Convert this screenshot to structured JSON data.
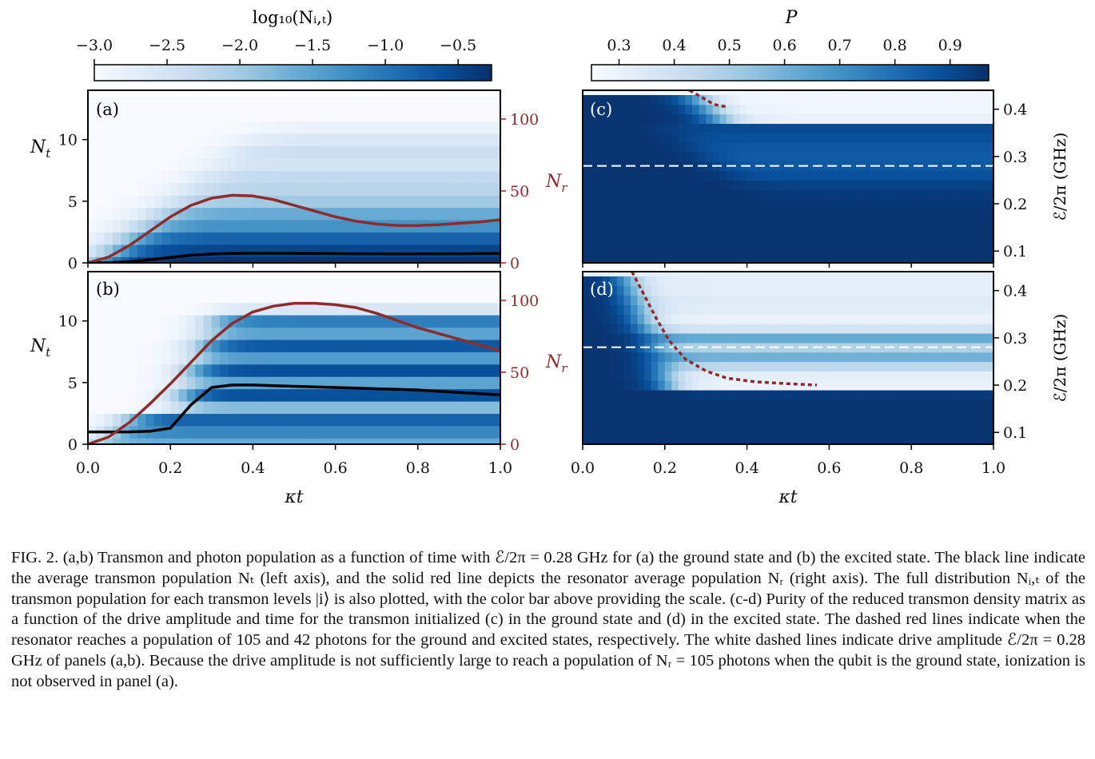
{
  "colorbars": {
    "left": {
      "label": "log₁₀(Nᵢ,ₜ)",
      "ticks": [
        "−3.0",
        "−2.5",
        "−2.0",
        "−1.5",
        "−1.0",
        "−0.5"
      ],
      "tick_values": [
        -3.0,
        -2.5,
        -2.0,
        -1.5,
        -1.0,
        -0.5
      ],
      "range": [
        -3.0,
        -0.27
      ]
    },
    "right": {
      "label": "P",
      "ticks": [
        "0.3",
        "0.4",
        "0.5",
        "0.6",
        "0.7",
        "0.8",
        "0.9"
      ],
      "tick_values": [
        0.3,
        0.4,
        0.5,
        0.6,
        0.7,
        0.8,
        0.9
      ],
      "range": [
        0.25,
        0.97
      ]
    },
    "colormap": [
      "#f7fbff",
      "#deebf7",
      "#c6dbef",
      "#9ecae1",
      "#6baed6",
      "#4292c6",
      "#2171b5",
      "#08519c",
      "#08306b"
    ]
  },
  "panels": {
    "a": {
      "label": "(a)"
    },
    "b": {
      "label": "(b)"
    },
    "c": {
      "label": "(c)"
    },
    "d": {
      "label": "(d)"
    }
  },
  "axes": {
    "x_label": "κt",
    "x_ticks": [
      "0.0",
      "0.2",
      "0.4",
      "0.6",
      "0.8",
      "1.0"
    ],
    "nt_label": "N",
    "nt_sub": "t",
    "nt_ticks": [
      "0",
      "5",
      "10"
    ],
    "nr_label": "N",
    "nr_sub": "r",
    "nr_ticks": [
      "0",
      "50",
      "100"
    ],
    "e_label": "ℰ/2π (GHz)",
    "e_ticks": [
      "0.1",
      "0.2",
      "0.3",
      "0.4"
    ],
    "red_color": "#8f2b2b"
  },
  "chart_data": [
    {
      "panel": "(a)",
      "type": "line",
      "x": [
        0.0,
        0.05,
        0.1,
        0.15,
        0.2,
        0.25,
        0.3,
        0.35,
        0.4,
        0.45,
        0.5,
        0.55,
        0.6,
        0.65,
        0.7,
        0.75,
        0.8,
        0.85,
        0.9,
        0.95,
        1.0
      ],
      "xlim": [
        0,
        1
      ],
      "ylim_left": [
        0,
        14
      ],
      "ylim_right": [
        0,
        120
      ],
      "series": [
        {
          "axis": "left",
          "color": "#000000",
          "values": [
            0.0,
            0.02,
            0.1,
            0.25,
            0.45,
            0.62,
            0.72,
            0.76,
            0.78,
            0.78,
            0.77,
            0.76,
            0.75,
            0.74,
            0.74,
            0.73,
            0.73,
            0.74,
            0.74,
            0.75,
            0.76
          ]
        },
        {
          "axis": "right",
          "color": "#8f2b2b",
          "values": [
            0.0,
            4,
            12,
            22,
            32,
            40,
            45,
            47,
            46.5,
            44,
            40,
            36,
            32,
            29,
            27,
            26,
            26,
            26.5,
            27.5,
            28.5,
            30
          ]
        }
      ],
      "heatmap_levels": {
        "rows": [
          0,
          1,
          2,
          3,
          4,
          5,
          6,
          7,
          8,
          9,
          10,
          11,
          12,
          13
        ],
        "log10_population_late_time": [
          -0.3,
          -0.5,
          -0.8,
          -1.3,
          -1.6,
          -2.0,
          -2.2,
          -2.3,
          -2.5,
          -2.4,
          -2.6,
          -2.8,
          -3.0,
          -3.0
        ]
      }
    },
    {
      "panel": "(b)",
      "type": "line",
      "x": [
        0.0,
        0.05,
        0.1,
        0.15,
        0.2,
        0.25,
        0.3,
        0.35,
        0.4,
        0.45,
        0.5,
        0.55,
        0.6,
        0.65,
        0.7,
        0.75,
        0.8,
        0.85,
        0.9,
        0.95,
        1.0
      ],
      "xlim": [
        0,
        1
      ],
      "ylim_left": [
        0,
        14
      ],
      "ylim_right": [
        0,
        120
      ],
      "series": [
        {
          "axis": "left",
          "color": "#000000",
          "values": [
            1.0,
            1.0,
            1.0,
            1.05,
            1.3,
            3.2,
            4.6,
            4.8,
            4.8,
            4.75,
            4.7,
            4.65,
            4.6,
            4.55,
            4.5,
            4.45,
            4.4,
            4.3,
            4.2,
            4.1,
            4.0
          ]
        },
        {
          "axis": "right",
          "color": "#8f2b2b",
          "values": [
            0.0,
            5,
            15,
            28,
            42,
            57,
            72,
            84,
            92,
            96,
            98,
            98,
            97,
            95,
            91,
            86,
            81,
            77,
            73,
            69,
            65
          ]
        }
      ],
      "heatmap_levels": {
        "rows": [
          0,
          1,
          2,
          3,
          4,
          5,
          6,
          7,
          8,
          9,
          10,
          11,
          12,
          13
        ],
        "log10_population_late_time": [
          -1.6,
          -1.2,
          -0.8,
          -1.8,
          -0.6,
          -1.5,
          -0.6,
          -1.4,
          -0.7,
          -1.5,
          -1.1,
          -2.6,
          -3.0,
          -3.0
        ]
      }
    },
    {
      "panel": "(c)",
      "type": "heatmap",
      "xlim": [
        0,
        1
      ],
      "ylim": [
        0.075,
        0.44
      ],
      "drive_amplitudes_GHz": [
        0.1,
        0.12,
        0.14,
        0.16,
        0.18,
        0.2,
        0.22,
        0.24,
        0.26,
        0.28,
        0.3,
        0.32,
        0.34,
        0.36,
        0.38,
        0.4,
        0.42
      ],
      "purity_late_time": [
        0.96,
        0.96,
        0.96,
        0.96,
        0.96,
        0.95,
        0.94,
        0.92,
        0.88,
        0.86,
        0.85,
        0.86,
        0.88,
        0.9,
        0.3,
        0.28,
        0.27
      ],
      "white_dashed_line_GHz": 0.28,
      "red_dashed": {
        "t": [
          0.26,
          0.28,
          0.3,
          0.32,
          0.35
        ],
        "E": [
          0.44,
          0.43,
          0.42,
          0.41,
          0.405
        ]
      }
    },
    {
      "panel": "(d)",
      "type": "heatmap",
      "xlim": [
        0,
        1
      ],
      "ylim": [
        0.075,
        0.44
      ],
      "drive_amplitudes_GHz": [
        0.1,
        0.12,
        0.14,
        0.16,
        0.18,
        0.2,
        0.22,
        0.24,
        0.26,
        0.28,
        0.3,
        0.32,
        0.34,
        0.36,
        0.38,
        0.4,
        0.42
      ],
      "purity_late_time": [
        0.96,
        0.96,
        0.96,
        0.96,
        0.94,
        0.3,
        0.32,
        0.45,
        0.6,
        0.48,
        0.62,
        0.38,
        0.3,
        0.33,
        0.34,
        0.32,
        0.32
      ],
      "white_dashed_line_GHz": 0.28,
      "red_dashed": {
        "t": [
          0.12,
          0.15,
          0.18,
          0.21,
          0.25,
          0.3,
          0.35,
          0.42,
          0.5,
          0.57
        ],
        "E": [
          0.44,
          0.39,
          0.34,
          0.295,
          0.255,
          0.23,
          0.215,
          0.207,
          0.203,
          0.2
        ]
      }
    }
  ],
  "caption": {
    "paragraph": "FIG. 2. (a,b) Transmon and photon population as a function of time with ℰ/2π = 0.28 GHz for (a) the ground state and (b) the excited state. The black line indicate the average transmon population Nₜ (left axis), and the solid red line depicts the resonator average population Nᵣ (right axis). The full distribution Nᵢ,ₜ of the transmon population for each transmon levels |i⟩ is also plotted, with the color bar above providing the scale. (c-d) Purity of the reduced transmon density matrix as a function of the drive amplitude and time for the transmon initialized (c) in the ground state and (d) in the excited state. The dashed red lines indicate when the resonator reaches a population of 105 and 42 photons for the ground and excited states, respectively. The white dashed lines indicate drive amplitude ℰ/2π = 0.28 GHz of panels (a,b). Because the drive amplitude is not sufficiently large to reach a population of Nᵣ = 105 photons when the qubit is the ground state, ionization is not observed in panel (a)."
  }
}
